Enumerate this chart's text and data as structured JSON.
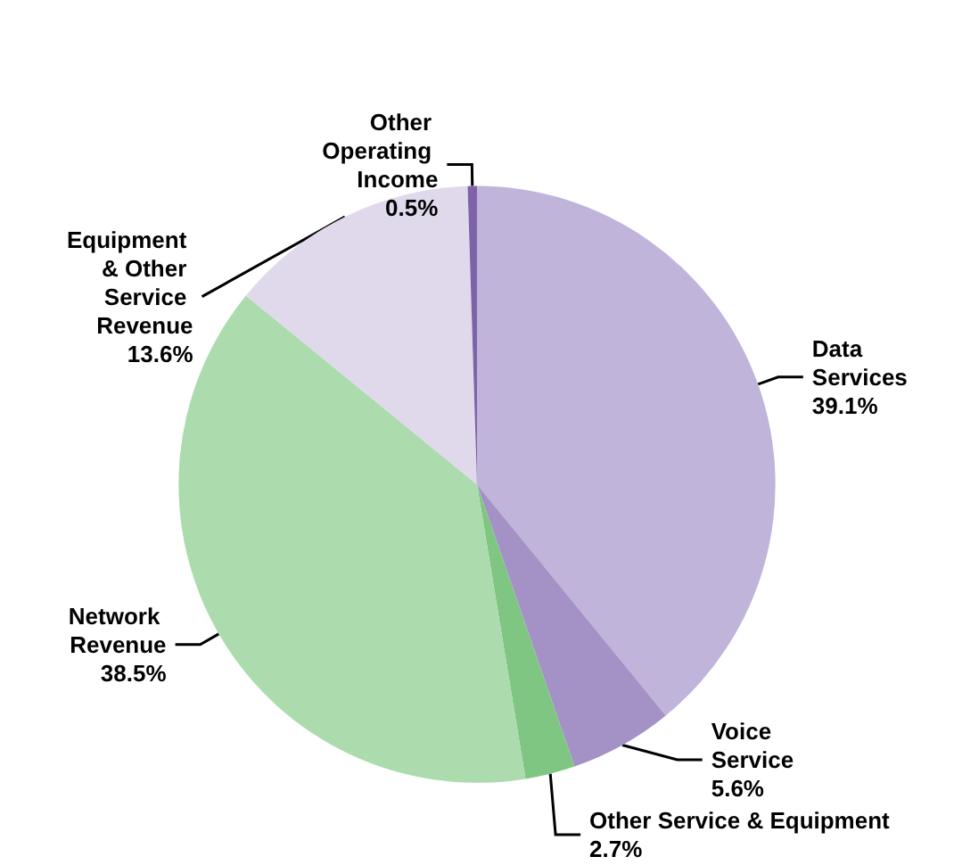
{
  "chart_data": {
    "type": "pie",
    "categories": [
      "Data Services",
      "Voice Service",
      "Other Service & Equipment",
      "Network Revenue",
      "Equipment & Other Service Revenue",
      "Other Operating Income"
    ],
    "values": [
      39.1,
      5.6,
      2.7,
      38.5,
      13.6,
      0.5
    ],
    "value_labels": [
      "39.1%",
      "5.6%",
      "2.7%",
      "38.5%",
      "13.6%",
      "0.5%"
    ],
    "colors": [
      "#c0b4da",
      "#a491c6",
      "#7fc683",
      "#acdbae",
      "#e0d9ec",
      "#7e63a9"
    ],
    "legend": false
  }
}
